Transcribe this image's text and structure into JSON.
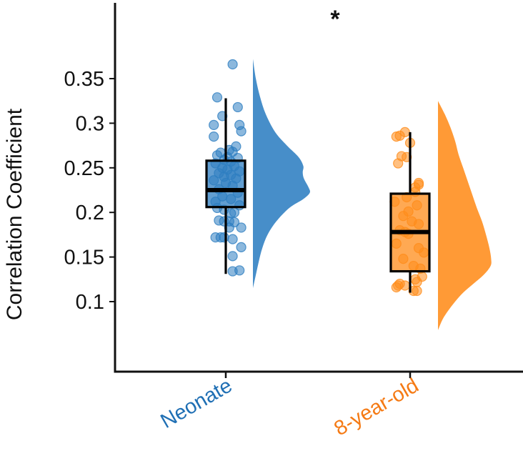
{
  "chart_data": {
    "type": "raincloud",
    "title": "",
    "xlabel": "",
    "ylabel": "Correlation Coefficient",
    "ylim": [
      0.0,
      0.425
    ],
    "yticks": [
      0.1,
      0.15,
      0.2,
      0.25,
      0.3,
      0.35
    ],
    "ytick_labels": [
      "0.1",
      "0.15",
      "0.2",
      "0.25",
      "0.3",
      "0.35"
    ],
    "grid": false,
    "legend": null,
    "categories": [
      "Neonate",
      "8-year-old"
    ],
    "annotation": {
      "text": "*",
      "meaning": "significant difference between groups"
    },
    "series": [
      {
        "name": "Neonate",
        "color": "#2E7EC1",
        "label_color": "#1F6FB4",
        "box": {
          "whisker_low": 0.131,
          "q1": 0.206,
          "median": 0.225,
          "q3": 0.258,
          "whisker_high": 0.328
        },
        "points": [
          [
            0.366,
            0.4
          ],
          [
            0.329,
            -0.5
          ],
          [
            0.318,
            0.7
          ],
          [
            0.308,
            -0.2
          ],
          [
            0.298,
            -0.7
          ],
          [
            0.298,
            0.8
          ],
          [
            0.291,
            0.9
          ],
          [
            0.285,
            -0.7
          ],
          [
            0.274,
            0.6
          ],
          [
            0.27,
            0.2
          ],
          [
            0.268,
            0.4
          ],
          [
            0.267,
            -0.3
          ],
          [
            0.264,
            -0.5
          ],
          [
            0.262,
            0.1
          ],
          [
            0.261,
            0.7
          ],
          [
            0.259,
            -0.1
          ],
          [
            0.257,
            0.3
          ],
          [
            0.255,
            -0.6
          ],
          [
            0.252,
            0.5
          ],
          [
            0.25,
            -0.2
          ],
          [
            0.248,
            0.1
          ],
          [
            0.246,
            0.8
          ],
          [
            0.244,
            -0.4
          ],
          [
            0.242,
            0.3
          ],
          [
            0.24,
            -0.1
          ],
          [
            0.238,
            0.6
          ],
          [
            0.236,
            -0.7
          ],
          [
            0.233,
            0.0
          ],
          [
            0.23,
            0.4
          ],
          [
            0.226,
            -0.4
          ],
          [
            0.222,
            0.7
          ],
          [
            0.218,
            -0.2
          ],
          [
            0.215,
            0.3
          ],
          [
            0.212,
            -0.6
          ],
          [
            0.208,
            0.8
          ],
          [
            0.205,
            -0.5
          ],
          [
            0.203,
            -0.1
          ],
          [
            0.2,
            0.5
          ],
          [
            0.199,
            0.3
          ],
          [
            0.191,
            -0.4
          ],
          [
            0.19,
            -0.1
          ],
          [
            0.19,
            0.2
          ],
          [
            0.189,
            0.5
          ],
          [
            0.183,
            0.9
          ],
          [
            0.183,
            0.2
          ],
          [
            0.172,
            -0.6
          ],
          [
            0.172,
            -0.3
          ],
          [
            0.172,
            -0.1
          ],
          [
            0.17,
            0.4
          ],
          [
            0.161,
            0.9
          ],
          [
            0.151,
            0.4
          ],
          [
            0.134,
            0.4
          ],
          [
            0.135,
            0.8
          ]
        ],
        "density": [
          [
            0.372,
            0.0
          ],
          [
            0.35,
            0.05
          ],
          [
            0.33,
            0.12
          ],
          [
            0.31,
            0.22
          ],
          [
            0.29,
            0.38
          ],
          [
            0.275,
            0.58
          ],
          [
            0.262,
            0.78
          ],
          [
            0.252,
            0.86
          ],
          [
            0.245,
            0.85
          ],
          [
            0.238,
            0.87
          ],
          [
            0.228,
            0.95
          ],
          [
            0.222,
            0.97
          ],
          [
            0.215,
            0.86
          ],
          [
            0.205,
            0.62
          ],
          [
            0.19,
            0.4
          ],
          [
            0.175,
            0.25
          ],
          [
            0.16,
            0.16
          ],
          [
            0.145,
            0.1
          ],
          [
            0.13,
            0.05
          ],
          [
            0.115,
            0.0
          ]
        ]
      },
      {
        "name": "8-year-old",
        "color": "#FF8C1A",
        "label_color": "#F57A14",
        "box": {
          "whisker_low": 0.11,
          "q1": 0.134,
          "median": 0.178,
          "q3": 0.221,
          "whisker_high": 0.29
        },
        "points": [
          [
            0.29,
            -0.3
          ],
          [
            0.286,
            -0.6
          ],
          [
            0.285,
            -0.8
          ],
          [
            0.278,
            0.0
          ],
          [
            0.263,
            -0.5
          ],
          [
            0.262,
            -0.2
          ],
          [
            0.255,
            -0.7
          ],
          [
            0.233,
            0.5
          ],
          [
            0.231,
            0.5
          ],
          [
            0.228,
            0.3
          ],
          [
            0.223,
            0.3
          ],
          [
            0.217,
            -0.2
          ],
          [
            0.212,
            -0.9
          ],
          [
            0.208,
            0.4
          ],
          [
            0.201,
            -0.1
          ],
          [
            0.196,
            -0.4
          ],
          [
            0.19,
            0.1
          ],
          [
            0.187,
            0.5
          ],
          [
            0.18,
            -0.6
          ],
          [
            0.178,
            -0.3
          ],
          [
            0.176,
            -0.1
          ],
          [
            0.165,
            -0.8
          ],
          [
            0.16,
            0.5
          ],
          [
            0.155,
            0.8
          ],
          [
            0.148,
            -0.4
          ],
          [
            0.14,
            0.2
          ],
          [
            0.137,
            0.6
          ],
          [
            0.128,
            0.7
          ],
          [
            0.125,
            0.3
          ],
          [
            0.122,
            0.4
          ],
          [
            0.12,
            -0.6
          ],
          [
            0.118,
            -0.7
          ],
          [
            0.118,
            -0.3
          ],
          [
            0.116,
            -0.8
          ],
          [
            0.112,
            0.2
          ],
          [
            0.112,
            0.4
          ]
        ],
        "density": [
          [
            0.325,
            0.0
          ],
          [
            0.31,
            0.12
          ],
          [
            0.295,
            0.22
          ],
          [
            0.28,
            0.3
          ],
          [
            0.265,
            0.36
          ],
          [
            0.25,
            0.44
          ],
          [
            0.235,
            0.52
          ],
          [
            0.22,
            0.6
          ],
          [
            0.205,
            0.68
          ],
          [
            0.19,
            0.77
          ],
          [
            0.175,
            0.84
          ],
          [
            0.16,
            0.9
          ],
          [
            0.148,
            0.93
          ],
          [
            0.14,
            0.92
          ],
          [
            0.13,
            0.8
          ],
          [
            0.12,
            0.62
          ],
          [
            0.11,
            0.44
          ],
          [
            0.1,
            0.3
          ],
          [
            0.09,
            0.18
          ],
          [
            0.08,
            0.08
          ],
          [
            0.068,
            0.0
          ]
        ]
      }
    ]
  },
  "axes": {
    "y_title": "Correlation Coefficient",
    "x_labels": [
      "Neonate",
      "8-year-old"
    ],
    "significance": "*"
  }
}
